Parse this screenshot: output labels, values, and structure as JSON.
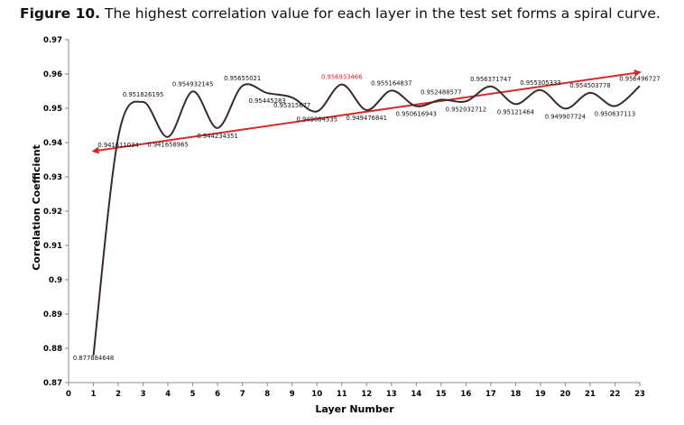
{
  "caption": {
    "label": "Figure 10.",
    "text": "The highest correlation value for each layer in the test set forms a spiral curve."
  },
  "chart_data": {
    "type": "line",
    "xlabel": "Layer Number",
    "ylabel": "Correlation Coefficient",
    "xlim": [
      0,
      23
    ],
    "ylim": [
      0.87,
      0.97
    ],
    "x_ticks": [
      "0",
      "1",
      "2",
      "3",
      "4",
      "5",
      "6",
      "7",
      "8",
      "9",
      "10",
      "11",
      "12",
      "13",
      "14",
      "15",
      "16",
      "17",
      "18",
      "19",
      "20",
      "21",
      "22",
      "23"
    ],
    "y_ticks": [
      "0.87",
      "0.88",
      "0.89",
      "0.9",
      "0.91",
      "0.92",
      "0.93",
      "0.94",
      "0.95",
      "0.96",
      "0.97"
    ],
    "grid": false,
    "series": [
      {
        "color": "#3a2a2a",
        "x": [
          1,
          2,
          3,
          4,
          5,
          6,
          7,
          8,
          9,
          10,
          11,
          12,
          13,
          14,
          15,
          16,
          17,
          18,
          19,
          20,
          21,
          22,
          23
        ],
        "values": [
          0.877884648,
          0.941611034,
          0.951826195,
          0.941658965,
          0.954932145,
          0.944234351,
          0.95655021,
          0.95445283,
          0.95315677,
          0.949084335,
          0.956933466,
          0.949476841,
          0.955164837,
          0.950616943,
          0.952488577,
          0.952032712,
          0.956371747,
          0.95121464,
          0.955305333,
          0.949907724,
          0.954503778,
          0.950637113,
          0.956496727
        ],
        "labels": [
          "0.877884648",
          "0.941611034",
          "0.951826195",
          "0.941658965",
          "0.954932145",
          "0.944234351",
          "0.95655021",
          "0.95445283",
          "0.95315677",
          "0.949084335",
          "0.956933466",
          "0.949476841",
          "0.955164837",
          "0.950616943",
          "0.952488577",
          "0.952032712",
          "0.956371747",
          "0.95121464",
          "0.955305333",
          "0.949907724",
          "0.954503778",
          "0.950637113",
          "0.956496727"
        ],
        "highlight_index": 10,
        "highlight_color": "#e0202a"
      }
    ],
    "trend_arrow": {
      "color": "#d42a2a",
      "from": [
        1,
        0.9375
      ],
      "to": [
        23,
        0.9605
      ],
      "double_headed": true
    }
  }
}
